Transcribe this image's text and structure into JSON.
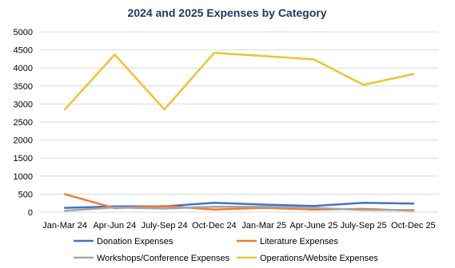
{
  "chart_data": {
    "type": "line",
    "title": "2024 and 2025 Expenses by Category",
    "xlabel": "",
    "ylabel": "",
    "categories": [
      "Jan-Mar 24",
      "Apr-Jun 24",
      "July-Sep 24",
      "Oct-Dec 24",
      "Jan-Mar 25",
      "Apr-June 25",
      "July-Sep 25",
      "Oct-Dec 25"
    ],
    "ylim": [
      0,
      5000
    ],
    "yticks": [
      0,
      500,
      1000,
      1500,
      2000,
      2500,
      3000,
      3500,
      4000,
      4500,
      5000
    ],
    "grid": true,
    "legend_position": "bottom",
    "series": [
      {
        "name": "Donation Expenses",
        "color": "#4472c4",
        "values": [
          120,
          160,
          160,
          260,
          210,
          170,
          260,
          240
        ]
      },
      {
        "name": "Literature Expenses",
        "color": "#ed7d31",
        "values": [
          500,
          110,
          170,
          70,
          120,
          70,
          90,
          40
        ]
      },
      {
        "name": "Workshops/Conference Expenses",
        "color": "#a5a5a5",
        "values": [
          40,
          130,
          100,
          150,
          150,
          120,
          60,
          60
        ]
      },
      {
        "name": "Operations/Website Expenses",
        "color": "#f1c232",
        "values": [
          2850,
          4370,
          2850,
          4420,
          4330,
          4240,
          3530,
          3830
        ]
      }
    ]
  }
}
